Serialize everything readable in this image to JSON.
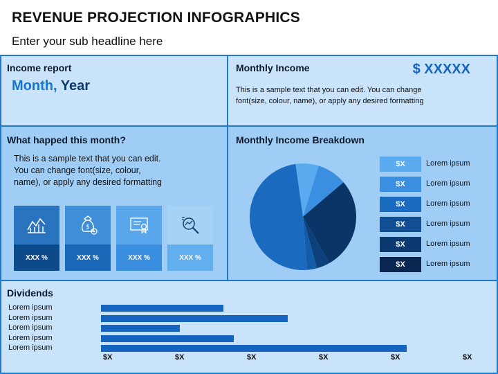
{
  "header": {
    "title": "REVENUE PROJECTION INFOGRAPHICS",
    "subtitle": "Enter your sub headline here"
  },
  "income_report": {
    "heading": "Income report",
    "month": "Month,",
    "year": "Year"
  },
  "monthly_income": {
    "heading": "Monthly Income",
    "amount": "$ XXXXX",
    "text": "This is a sample text that you can edit. You can change font(size, colour, name), or apply any desired formatting"
  },
  "what_happened": {
    "heading": "What happed this month?",
    "text": "This is a sample text that you can edit. You can change font(size, colour, name), or apply any desired formatting",
    "tiles": [
      {
        "icon": "chart-icon",
        "value": "XXX %",
        "top_color": "#2a73be",
        "bot_color": "#0d4a8a"
      },
      {
        "icon": "money-bag-gear-icon",
        "value": "XXX %",
        "top_color": "#3f8fd8",
        "bot_color": "#1a68b8"
      },
      {
        "icon": "certificate-icon",
        "value": "XXX %",
        "top_color": "#5aa6ec",
        "bot_color": "#3a8ee0"
      },
      {
        "icon": "search-analysis-icon",
        "value": "XXX %",
        "top_color": "#a6d2f6",
        "bot_color": "#62aff0"
      }
    ]
  },
  "breakdown": {
    "heading": "Monthly Income Breakdown",
    "legend": [
      {
        "box": "$X",
        "label": "Lorem ipsum",
        "color": "#5aaaf0"
      },
      {
        "box": "$X",
        "label": "Lorem ipsum",
        "color": "#3a8fe0"
      },
      {
        "box": "$X",
        "label": "Lorem ipsum",
        "color": "#1a6ac0"
      },
      {
        "box": "$X",
        "label": "Lorem ipsum",
        "color": "#114e94"
      },
      {
        "box": "$X",
        "label": "Lorem ipsum",
        "color": "#0c3a70"
      },
      {
        "box": "$X",
        "label": "Lorem ipsum",
        "color": "#082650"
      }
    ]
  },
  "dividends": {
    "heading": "Dividends",
    "x_ticks": [
      "$X",
      "$X",
      "$X",
      "$X",
      "$X",
      "$X"
    ]
  },
  "chart_data": [
    {
      "type": "pie",
      "title": "",
      "categories": [
        "",
        "",
        "",
        "",
        "",
        ""
      ],
      "values": [
        7,
        9,
        28,
        4,
        3,
        49
      ],
      "colors": [
        "#5aaaf0",
        "#3a8fe0",
        "#0b3566",
        "#0d3f7a",
        "#125ca8",
        "#1a6ac0"
      ]
    },
    {
      "type": "bar",
      "orientation": "horizontal",
      "title": "Dividends",
      "categories": [
        "Lorem ipsum",
        "Lorem ipsum",
        "Lorem ipsum",
        "Lorem ipsum",
        "Lorem ipsum"
      ],
      "values": [
        1.7,
        2.6,
        1.1,
        1.85,
        4.25
      ],
      "xlim": [
        0,
        5
      ],
      "color": "#1565c0"
    }
  ]
}
